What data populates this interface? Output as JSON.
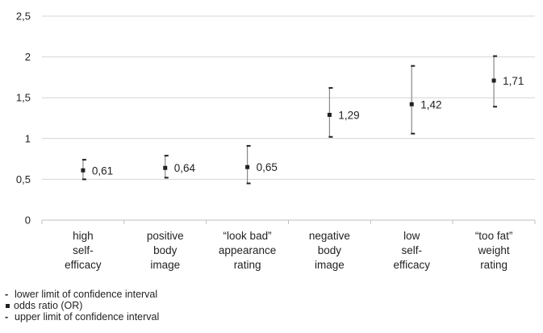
{
  "chart_data": {
    "type": "errorbar",
    "title": "",
    "xlabel": "",
    "ylabel": "",
    "ylim": [
      0,
      2.5
    ],
    "yticks": [
      "0",
      "0,5",
      "1",
      "1,5",
      "2",
      "2,5"
    ],
    "grid": true,
    "categories": [
      [
        "high",
        "self-",
        "efficacy"
      ],
      [
        "positive",
        "body",
        "image"
      ],
      [
        "“look bad”",
        "appearance",
        "rating"
      ],
      [
        "negative",
        "body",
        "image"
      ],
      [
        "low",
        "self-",
        "efficacy"
      ],
      [
        "“too fat”",
        "weight",
        "rating"
      ]
    ],
    "odds_ratio": [
      0.61,
      0.64,
      0.65,
      1.29,
      1.42,
      1.71
    ],
    "lower_limit": [
      0.5,
      0.52,
      0.45,
      1.02,
      1.06,
      1.39
    ],
    "upper_limit": [
      0.74,
      0.79,
      0.91,
      1.62,
      1.89,
      2.01
    ],
    "data_labels": [
      "0,61",
      "0,64",
      "0,65",
      "1,29",
      "1,42",
      "1,71"
    ],
    "colors": {
      "grid": "#d4d4d4",
      "marks": "#222222",
      "whisker": "#888888"
    }
  },
  "legend": [
    {
      "mark": "-",
      "label": "lower limit of confidence interval"
    },
    {
      "mark": "square",
      "label": "odds ratio (OR)"
    },
    {
      "mark": "-",
      "label": "upper limit of confidence interval"
    }
  ]
}
